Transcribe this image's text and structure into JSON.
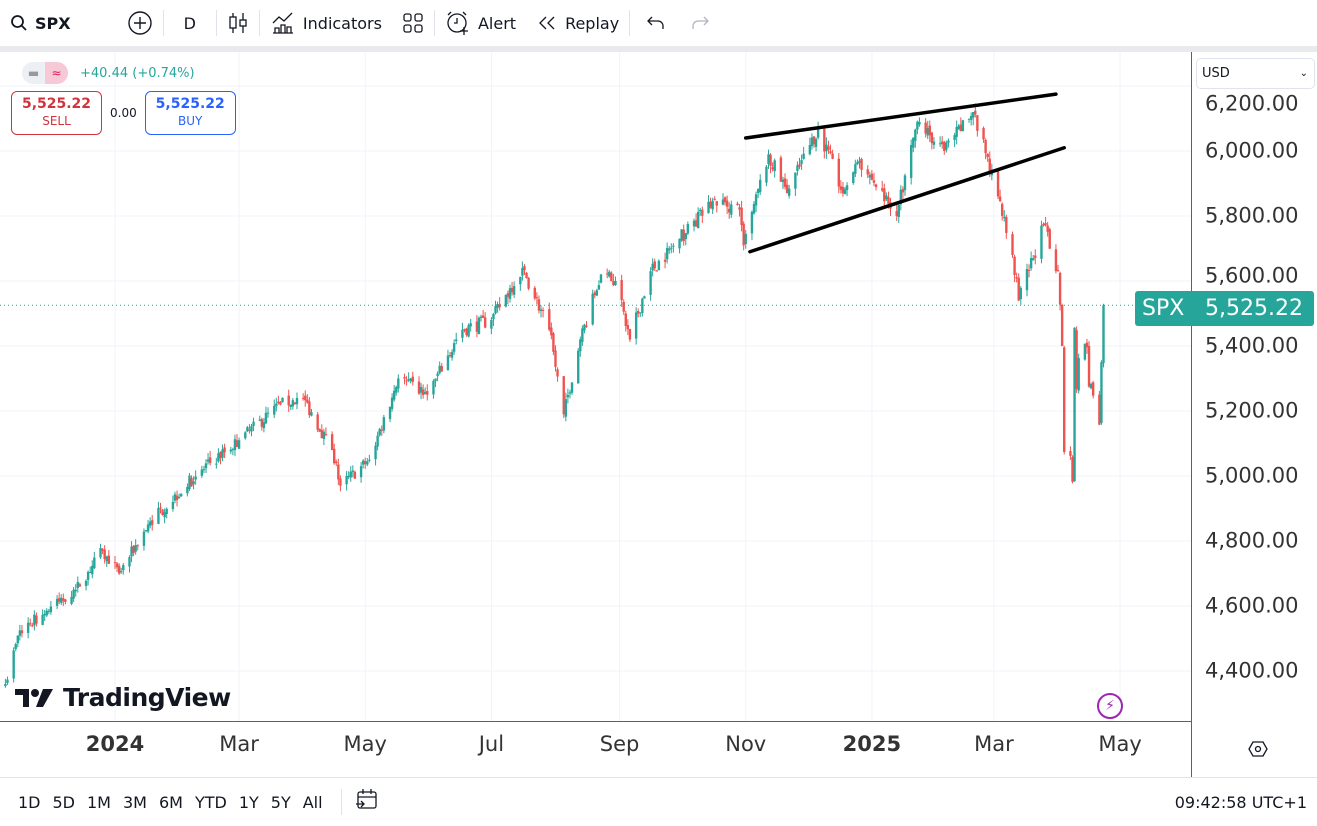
{
  "toolbar": {
    "symbol": "SPX",
    "interval": "D",
    "indicators_label": "Indicators",
    "alert_label": "Alert",
    "replay_label": "Replay"
  },
  "legend": {
    "change": "+40.44 (+0.74%)",
    "sell_price": "5,525.22",
    "sell_label": "SELL",
    "spread": "0.00",
    "buy_price": "5,525.22",
    "buy_label": "BUY"
  },
  "currency": "USD",
  "last_price_label": {
    "symbol": "SPX",
    "price": "5,525.22"
  },
  "logo_text": "TradingView",
  "bottom": {
    "ranges": [
      "1D",
      "5D",
      "1M",
      "3M",
      "6M",
      "YTD",
      "1Y",
      "5Y",
      "All"
    ],
    "clock": "09:42:58 UTC+1"
  },
  "colors": {
    "up": "#26a69a",
    "down": "#ef5350",
    "accent": "#26a69a",
    "sell": "#d0353f",
    "buy": "#2962ff"
  },
  "chart_data": {
    "type": "candlestick",
    "symbol": "SPX",
    "timeframe": "D",
    "last_close": 5525.22,
    "ylim": [
      4250,
      6250
    ],
    "y_ticks": [
      {
        "value": 6200,
        "label": "6,200.00"
      },
      {
        "value": 6000,
        "label": "6,000.00"
      },
      {
        "value": 5800,
        "label": "5,800.00"
      },
      {
        "value": 5600,
        "label": "5,600.00"
      },
      {
        "value": 5400,
        "label": "5,400.00"
      },
      {
        "value": 5200,
        "label": "5,200.00"
      },
      {
        "value": 5000,
        "label": "5,000.00"
      },
      {
        "value": 4800,
        "label": "4,800.00"
      },
      {
        "value": 4600,
        "label": "4,600.00"
      },
      {
        "value": 4400,
        "label": "4,400.00"
      }
    ],
    "x_ticks": [
      {
        "date": "2024-01-01",
        "label": "2024",
        "bold": true
      },
      {
        "date": "2024-03-01",
        "label": "Mar"
      },
      {
        "date": "2024-05-01",
        "label": "May"
      },
      {
        "date": "2024-07-01",
        "label": "Jul"
      },
      {
        "date": "2024-09-01",
        "label": "Sep"
      },
      {
        "date": "2024-11-01",
        "label": "Nov"
      },
      {
        "date": "2025-01-01",
        "label": "2025",
        "bold": true
      },
      {
        "date": "2025-03-01",
        "label": "Mar"
      },
      {
        "date": "2025-05-01",
        "label": "May"
      }
    ],
    "close_anchors": [
      [
        "2023-11-09",
        4360
      ],
      [
        "2023-11-16",
        4525
      ],
      [
        "2023-12-13",
        4650
      ],
      [
        "2023-12-26",
        4770
      ],
      [
        "2024-01-03",
        4700
      ],
      [
        "2024-01-18",
        4860
      ],
      [
        "2024-02-12",
        5020
      ],
      [
        "2024-03-01",
        5110
      ],
      [
        "2024-03-21",
        5220
      ],
      [
        "2024-04-01",
        5240
      ],
      [
        "2024-04-15",
        5080
      ],
      [
        "2024-04-19",
        4970
      ],
      [
        "2024-05-03",
        5050
      ],
      [
        "2024-05-17",
        5300
      ],
      [
        "2024-05-31",
        5250
      ],
      [
        "2024-06-17",
        5450
      ],
      [
        "2024-07-01",
        5480
      ],
      [
        "2024-07-16",
        5640
      ],
      [
        "2024-07-29",
        5450
      ],
      [
        "2024-08-05",
        5190
      ],
      [
        "2024-08-13",
        5420
      ],
      [
        "2024-08-23",
        5620
      ],
      [
        "2024-08-30",
        5600
      ],
      [
        "2024-09-06",
        5420
      ],
      [
        "2024-09-16",
        5630
      ],
      [
        "2024-09-30",
        5730
      ],
      [
        "2024-10-17",
        5850
      ],
      [
        "2024-10-29",
        5820
      ],
      [
        "2024-10-31",
        5710
      ],
      [
        "2024-11-12",
        5990
      ],
      [
        "2024-11-21",
        5870
      ],
      [
        "2024-12-06",
        6070
      ],
      [
        "2024-12-18",
        5870
      ],
      [
        "2024-12-26",
        5970
      ],
      [
        "2025-01-13",
        5800
      ],
      [
        "2025-01-23",
        6090
      ],
      [
        "2025-02-05",
        6000
      ],
      [
        "2025-02-19",
        6120
      ],
      [
        "2025-03-03",
        5860
      ],
      [
        "2025-03-10",
        5680
      ],
      [
        "2025-03-13",
        5540
      ],
      [
        "2025-03-25",
        5770
      ],
      [
        "2025-04-01",
        5630
      ],
      [
        "2025-04-03",
        5400
      ],
      [
        "2025-04-04",
        5074
      ],
      [
        "2025-04-07",
        5062
      ],
      [
        "2025-04-08",
        4982
      ],
      [
        "2025-04-09",
        5456
      ],
      [
        "2025-04-10",
        5268
      ],
      [
        "2025-04-11",
        5363
      ],
      [
        "2025-04-14",
        5406
      ],
      [
        "2025-04-15",
        5396
      ],
      [
        "2025-04-16",
        5275
      ],
      [
        "2025-04-17",
        5283
      ],
      [
        "2025-04-21",
        5158
      ],
      [
        "2025-04-22",
        5350
      ],
      [
        "2025-04-23",
        5525.22
      ]
    ],
    "drawings": [
      {
        "type": "trendline",
        "from": [
          "2024-11-01",
          6040
        ],
        "to": [
          "2025-03-31",
          6175
        ]
      },
      {
        "type": "trendline",
        "from": [
          "2024-11-03",
          5690
        ],
        "to": [
          "2025-04-04",
          6010
        ]
      }
    ]
  }
}
